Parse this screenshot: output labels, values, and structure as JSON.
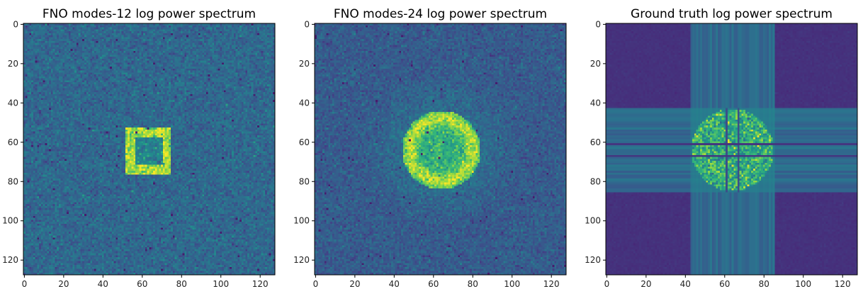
{
  "chart_data": [
    {
      "type": "heatmap",
      "title": "FNO modes-12 log power spectrum",
      "pattern": "square-ring",
      "colormap": "viridis",
      "grid": false,
      "xlim": [
        0,
        127
      ],
      "ylim": [
        127,
        0
      ],
      "x_ticks": [
        0,
        20,
        40,
        60,
        80,
        100,
        120
      ],
      "y_ticks": [
        0,
        20,
        40,
        60,
        80,
        100,
        120
      ],
      "x_tick_labels": [
        "0",
        "20",
        "40",
        "60",
        "80",
        "100",
        "120"
      ],
      "y_tick_labels": [
        "0",
        "20",
        "40",
        "60",
        "80",
        "100",
        "120"
      ]
    },
    {
      "type": "heatmap",
      "title": "FNO modes-24 log power spectrum",
      "pattern": "disk-halo",
      "colormap": "viridis",
      "grid": false,
      "xlim": [
        0,
        127
      ],
      "ylim": [
        127,
        0
      ],
      "x_ticks": [
        0,
        20,
        40,
        60,
        80,
        100,
        120
      ],
      "y_ticks": [
        0,
        20,
        40,
        60,
        80,
        100,
        120
      ],
      "x_tick_labels": [
        "0",
        "20",
        "40",
        "60",
        "80",
        "100",
        "120"
      ],
      "y_tick_labels": [
        "0",
        "20",
        "40",
        "60",
        "80",
        "100",
        "120"
      ]
    },
    {
      "type": "heatmap",
      "title": "Ground truth log power spectrum",
      "pattern": "cross-disk",
      "colormap": "viridis",
      "grid": false,
      "xlim": [
        0,
        127
      ],
      "ylim": [
        127,
        0
      ],
      "x_ticks": [
        0,
        20,
        40,
        60,
        80,
        100,
        120
      ],
      "y_ticks": [
        0,
        20,
        40,
        60,
        80,
        100,
        120
      ],
      "x_tick_labels": [
        "0",
        "20",
        "40",
        "60",
        "80",
        "100",
        "120"
      ],
      "y_tick_labels": [
        "0",
        "20",
        "40",
        "60",
        "80",
        "100",
        "120"
      ]
    }
  ]
}
